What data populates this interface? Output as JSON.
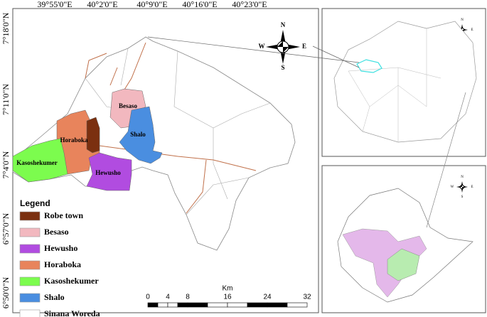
{
  "main_map": {
    "top_coords": [
      "39°55'0\"E",
      "40°2'0\"E",
      "40°9'0\"E",
      "40°16'0\"E",
      "40°23'0\"E"
    ],
    "left_coords": [
      "7°18'0\"N",
      "7°11'0\"N",
      "7°4'0\"N",
      "6°57'0\"N",
      "6°50'0\"N"
    ],
    "area_labels": [
      "Besaso",
      "Shalo",
      "Horaboka",
      "Kasoshekumer",
      "Hewusho"
    ],
    "compass": {
      "n": "N",
      "e": "E",
      "s": "S",
      "w": "W"
    }
  },
  "legend": {
    "title": "Legend",
    "items": [
      "Robe town",
      "Besaso",
      "Hewusho",
      "Horaboka",
      "Kasoshekumer",
      "Shalo",
      "Sinana Woreda"
    ]
  },
  "scale_bar": {
    "unit": "Km",
    "labels": [
      "0",
      "4",
      "8",
      "16",
      "24",
      "32"
    ]
  },
  "inset_top": {
    "compass": {
      "n": "N",
      "e": "E",
      "s": "S",
      "w": "W"
    }
  },
  "inset_bottom": {
    "compass": {
      "n": "N",
      "e": "E",
      "s": "S",
      "w": "W"
    }
  }
}
